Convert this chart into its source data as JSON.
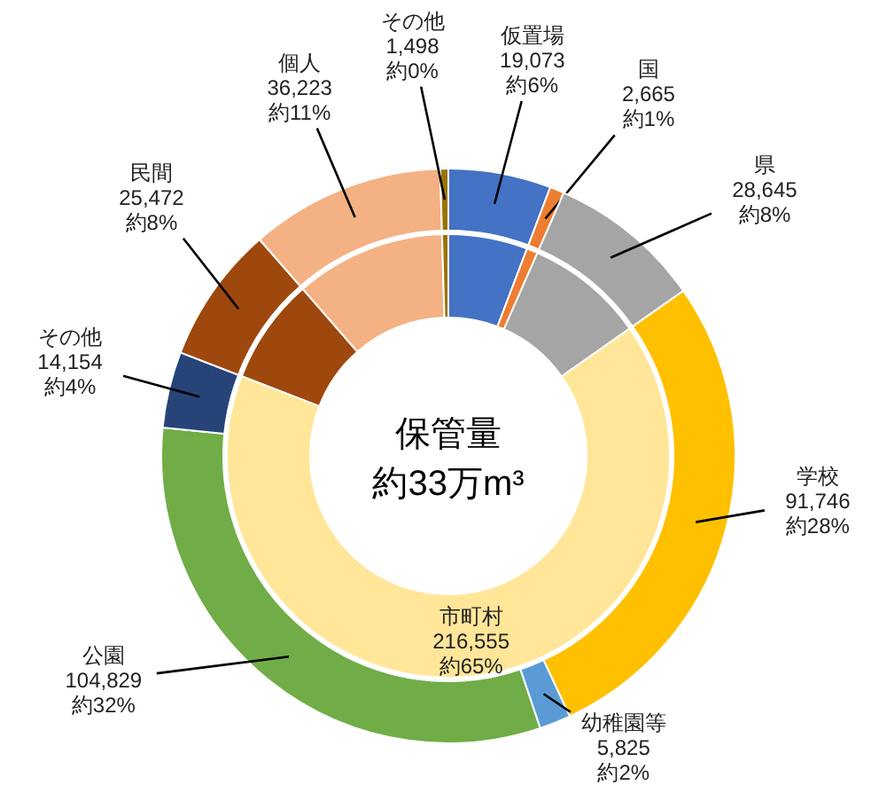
{
  "chart_data": [
    {
      "type": "donut",
      "categories": [
        "仮置場",
        "国",
        "県",
        "学校",
        "幼稚園等",
        "公園",
        "その他",
        "民間",
        "個人",
        "その他"
      ],
      "values": [
        19073,
        2665,
        28645,
        91746,
        5825,
        104829,
        14154,
        25472,
        36223,
        1498
      ],
      "colors": [
        "#4472c4",
        "#ed7d31",
        "#a5a5a5",
        "#ffc000",
        "#5b9bd5",
        "#70ad47",
        "#264478",
        "#9e480e",
        "#f4b183",
        "#997300"
      ],
      "value_labels": [
        "19,073\n約6%",
        "2,665\n約1%",
        "28,645\n約8%",
        "91,746\n約28%",
        "5,825\n約2%",
        "104,829\n約32%",
        "14,154\n約4%",
        "25,472\n約8%",
        "36,223\n約11%",
        "1,498\n約0%"
      ]
    },
    {
      "type": "donut",
      "title": "保管量",
      "subtitle": "約33万m³",
      "categories": [
        null,
        null,
        null,
        "市町村",
        null,
        null,
        null
      ],
      "values": [
        19073,
        2665,
        28645,
        216555,
        25472,
        36223,
        1498
      ],
      "colors": [
        "#4472c4",
        "#ed7d31",
        "#a5a5a5",
        "#ffe699",
        "#9e480e",
        "#f4b183",
        "#997300"
      ],
      "value_labels": [
        null,
        null,
        null,
        "216,555\n約65%",
        null,
        null,
        null
      ]
    }
  ]
}
